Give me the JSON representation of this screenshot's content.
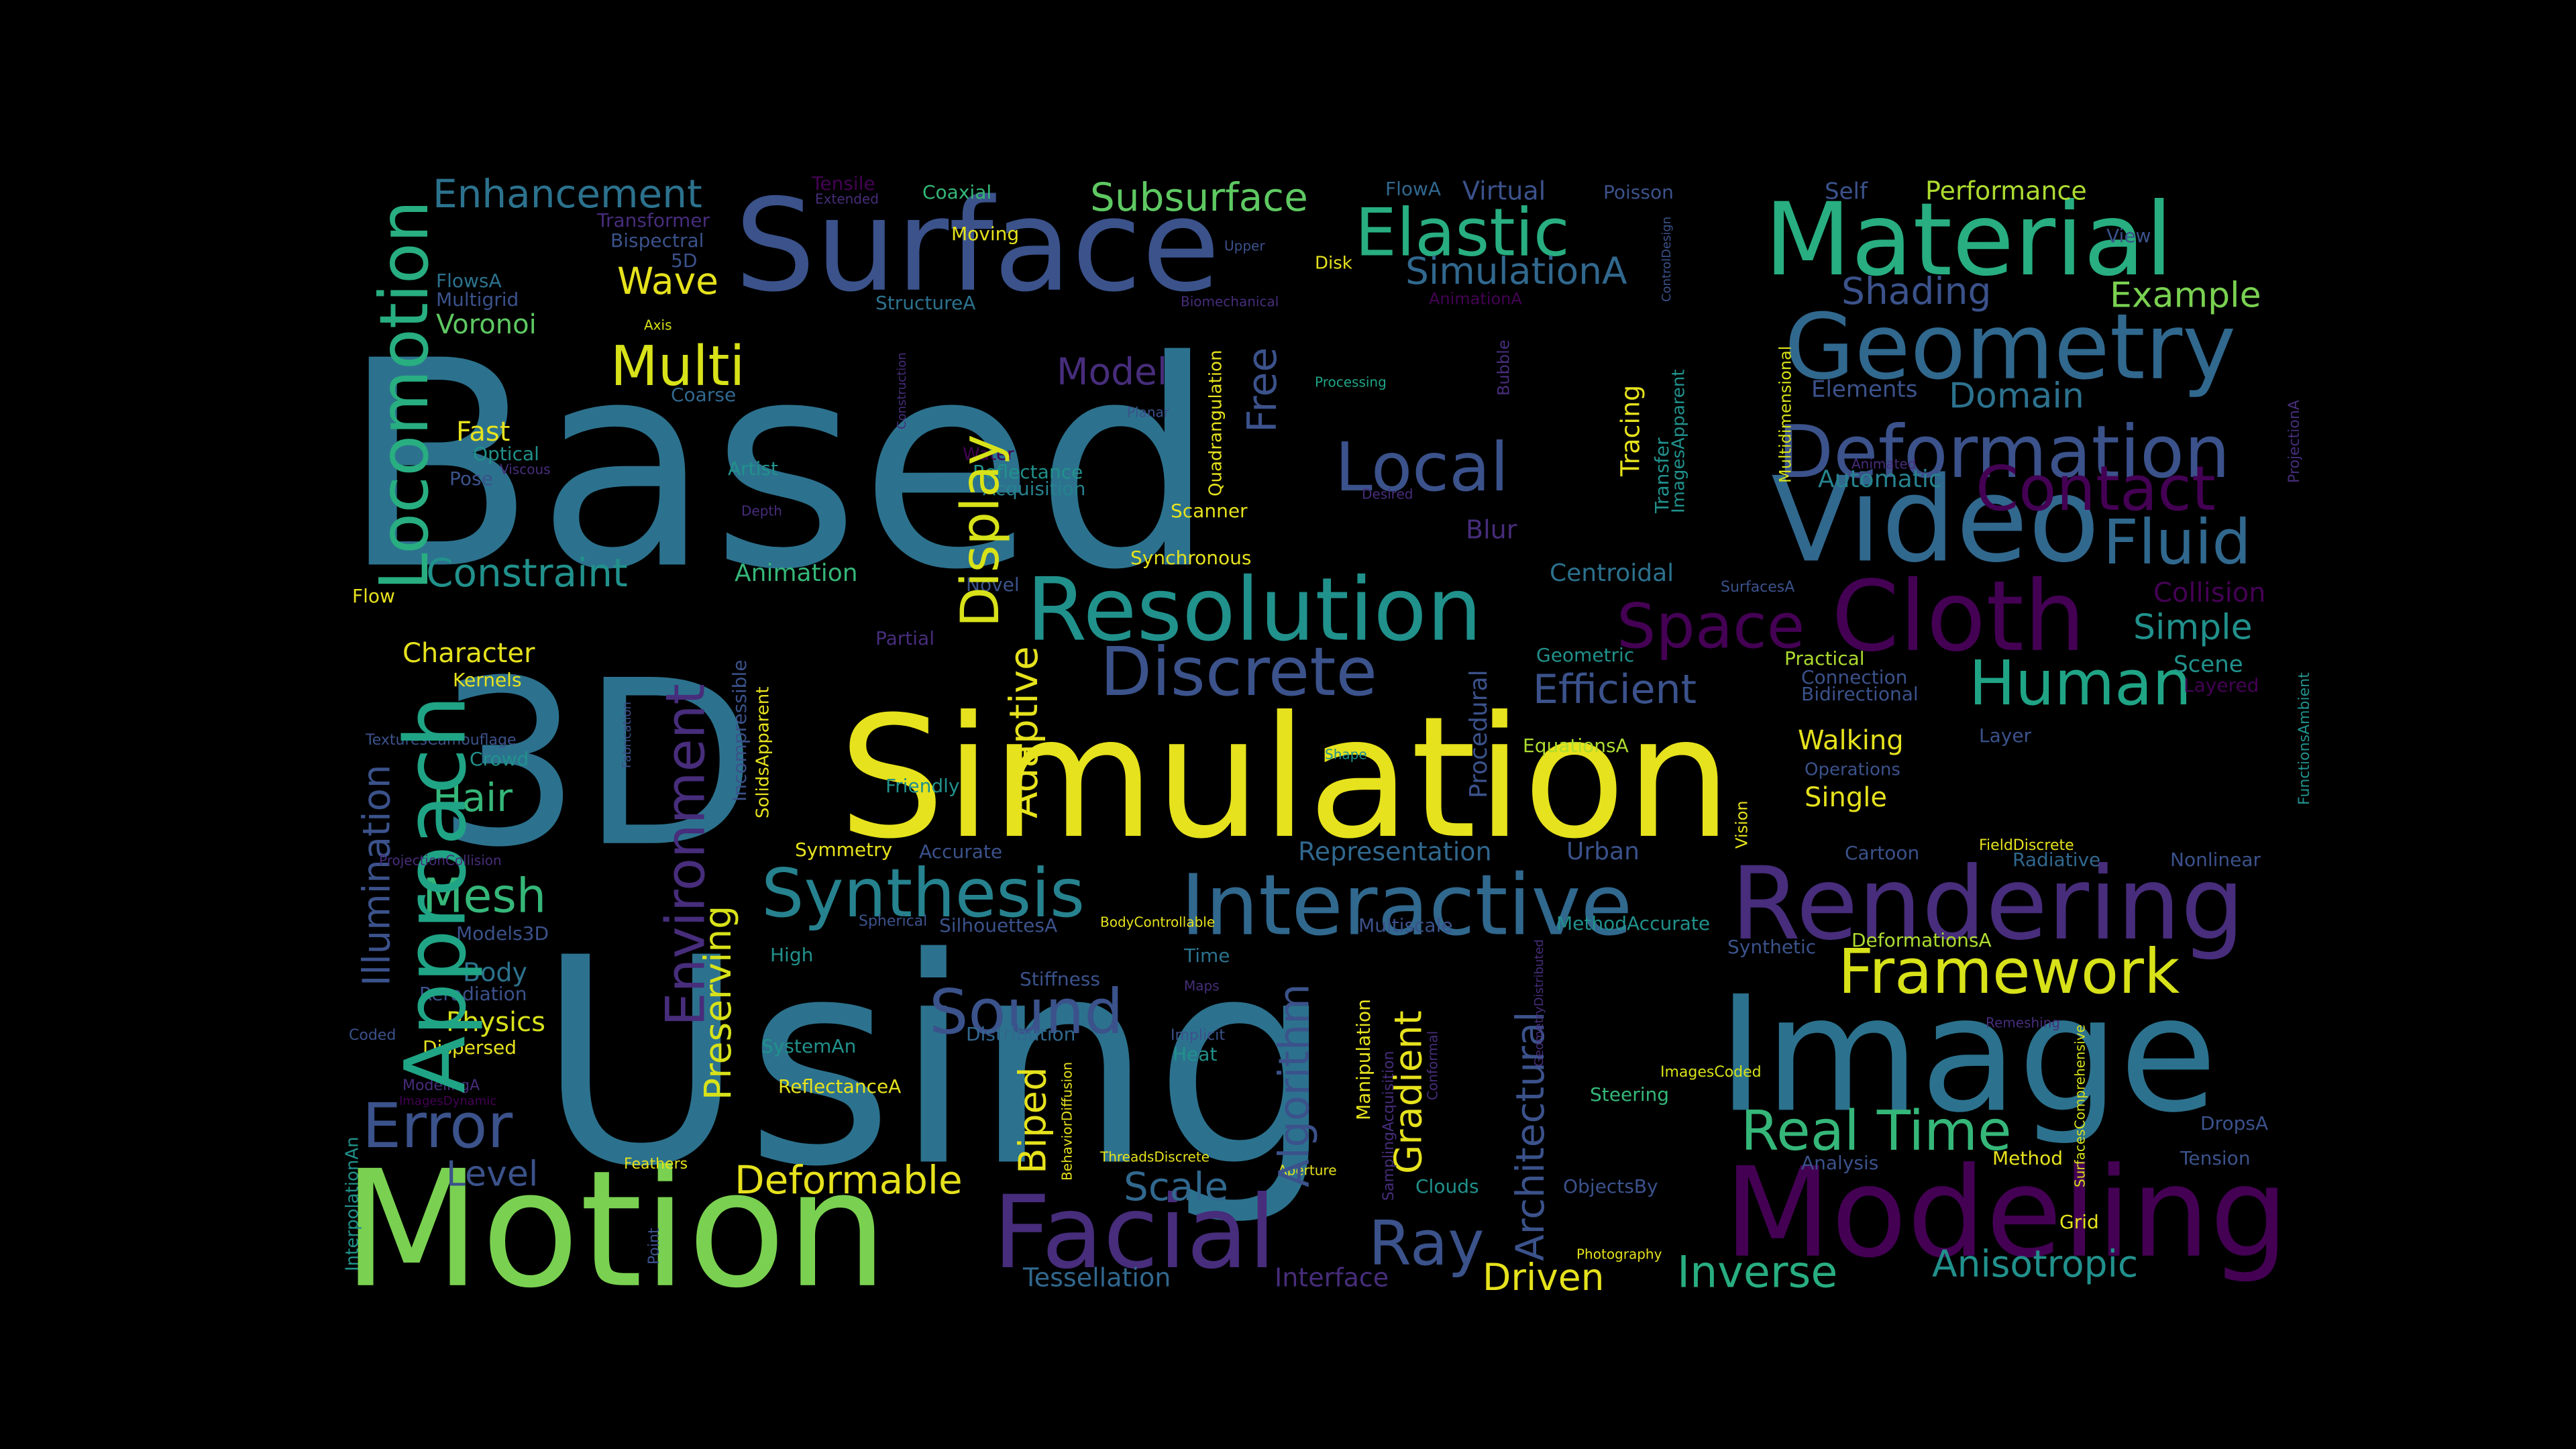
{
  "palette": {
    "background": "#000000",
    "c1": "#440154",
    "c2": "#472d7b",
    "c3": "#3b528b",
    "c4": "#2c728e",
    "c5": "#21918c",
    "c6": "#28ae80",
    "c7": "#5ec962",
    "c8": "#addc30",
    "c9": "#e6e21d"
  },
  "words": [
    {
      "text": "Based",
      "color": "#2c728e"
    },
    {
      "text": "Using",
      "color": "#2c728e"
    },
    {
      "text": "Simulation",
      "color": "#e6e21d"
    },
    {
      "text": "3D",
      "color": "#2c728e"
    },
    {
      "text": "Motion",
      "color": "#7ad151"
    },
    {
      "text": "Image",
      "color": "#2c728e"
    },
    {
      "text": "Modeling",
      "color": "#440154"
    },
    {
      "text": "Rendering",
      "color": "#472d7b"
    },
    {
      "text": "Surface",
      "color": "#3b528b"
    },
    {
      "text": "Material",
      "color": "#28ae80"
    },
    {
      "text": "Video",
      "color": "#31688e"
    },
    {
      "text": "Geometry",
      "color": "#31688e"
    },
    {
      "text": "Interactive",
      "color": "#31688e"
    },
    {
      "text": "Resolution",
      "color": "#21918c"
    },
    {
      "text": "Cloth",
      "color": "#440154"
    },
    {
      "text": "Facial",
      "color": "#472d7b"
    },
    {
      "text": "Deformation",
      "color": "#3b528b"
    },
    {
      "text": "Elastic",
      "color": "#28ae80"
    },
    {
      "text": "Discrete",
      "color": "#3b528b"
    },
    {
      "text": "Framework",
      "color": "#d8e219"
    },
    {
      "text": "Synthesis",
      "color": "#26828e"
    },
    {
      "text": "Contact",
      "color": "#440154"
    },
    {
      "text": "Fluid",
      "color": "#31688e"
    },
    {
      "text": "Local",
      "color": "#3b528b"
    },
    {
      "text": "Real Time",
      "color": "#35b779"
    },
    {
      "text": "Space",
      "color": "#440154"
    },
    {
      "text": "Human",
      "color": "#20a486"
    },
    {
      "text": "Sound",
      "color": "#3b528b"
    },
    {
      "text": "Error",
      "color": "#3b528b"
    },
    {
      "text": "Ray",
      "color": "#3b528b"
    },
    {
      "text": "Multi",
      "color": "#d8e219"
    },
    {
      "text": "Subsurface",
      "color": "#5ec962"
    },
    {
      "text": "Mesh",
      "color": "#35b779"
    },
    {
      "text": "Inverse",
      "color": "#28ae80"
    },
    {
      "text": "Deformable",
      "color": "#e6e21d"
    },
    {
      "text": "Efficient",
      "color": "#3b528b"
    },
    {
      "text": "Anisotropic",
      "color": "#21918c"
    },
    {
      "text": "Constraint",
      "color": "#21918c"
    },
    {
      "text": "Enhancement",
      "color": "#2c728e"
    },
    {
      "text": "Driven",
      "color": "#e6e21d"
    },
    {
      "text": "Simple",
      "color": "#21918c"
    },
    {
      "text": "SimulationA",
      "color": "#31688e"
    },
    {
      "text": "Wave",
      "color": "#e6e21d"
    },
    {
      "text": "Scale",
      "color": "#31688e"
    },
    {
      "text": "Hair",
      "color": "#35b779"
    },
    {
      "text": "Model",
      "color": "#472d7b"
    },
    {
      "text": "Shading",
      "color": "#3b528b"
    },
    {
      "text": "Example",
      "color": "#7ad151"
    },
    {
      "text": "Domain",
      "color": "#2c728e"
    },
    {
      "text": "Level",
      "color": "#3b528b"
    },
    {
      "text": "Tessellation",
      "color": "#31688e"
    },
    {
      "text": "Physics",
      "color": "#d8e219"
    },
    {
      "text": "Body",
      "color": "#2c728e"
    },
    {
      "text": "Voronoi",
      "color": "#5ec962"
    },
    {
      "text": "Performance",
      "color": "#addc30"
    },
    {
      "text": "Character",
      "color": "#e6e21d"
    },
    {
      "text": "Interface",
      "color": "#472d7b"
    },
    {
      "text": "Collision",
      "color": "#440154"
    },
    {
      "text": "Walking",
      "color": "#e6e21d"
    },
    {
      "text": "Single",
      "color": "#e6e21d"
    },
    {
      "text": "Automatic",
      "color": "#26828e"
    },
    {
      "text": "Animation",
      "color": "#35b779"
    },
    {
      "text": "Centroidal",
      "color": "#2c728e"
    },
    {
      "text": "Fast",
      "color": "#e6e21d"
    },
    {
      "text": "Blur",
      "color": "#472d7b"
    },
    {
      "text": "Virtual",
      "color": "#3b528b"
    },
    {
      "text": "Elements",
      "color": "#3b528b"
    },
    {
      "text": "Scene",
      "color": "#21918c"
    },
    {
      "text": "Representation",
      "color": "#31688e"
    },
    {
      "text": "Urban",
      "color": "#3b528b"
    },
    {
      "text": "Synthetic",
      "color": "#3b528b"
    },
    {
      "text": "Cartoon",
      "color": "#3b528b"
    },
    {
      "text": "Nonlinear",
      "color": "#3b528b"
    },
    {
      "text": "DeformationsA",
      "color": "#addc30"
    },
    {
      "text": "Radiative",
      "color": "#31688e"
    },
    {
      "text": "Practical",
      "color": "#addc30"
    },
    {
      "text": "Connection",
      "color": "#3b528b"
    },
    {
      "text": "Bidirectional",
      "color": "#3b528b"
    },
    {
      "text": "Layered",
      "color": "#440154"
    },
    {
      "text": "Layer",
      "color": "#3b528b"
    },
    {
      "text": "Operations",
      "color": "#3b528b"
    },
    {
      "text": "Geometric",
      "color": "#21918c"
    },
    {
      "text": "EquationsA",
      "color": "#addc30"
    },
    {
      "text": "Self",
      "color": "#3b528b"
    },
    {
      "text": "Poisson",
      "color": "#3b528b"
    },
    {
      "text": "FlowA",
      "color": "#31688e"
    },
    {
      "text": "Coaxial",
      "color": "#35b779"
    },
    {
      "text": "Tensile",
      "color": "#440154"
    },
    {
      "text": "Extended",
      "color": "#472d7b"
    },
    {
      "text": "Transformer",
      "color": "#472d7b"
    },
    {
      "text": "Bispectral",
      "color": "#3b528b"
    },
    {
      "text": "5D",
      "color": "#3b528b"
    },
    {
      "text": "FlowsA",
      "color": "#2c728e"
    },
    {
      "text": "Multigrid",
      "color": "#3b528b"
    },
    {
      "text": "Moving",
      "color": "#e6e21d"
    },
    {
      "text": "Upper",
      "color": "#3b528b"
    },
    {
      "text": "Disk",
      "color": "#e6e21d"
    },
    {
      "text": "AnimationA",
      "color": "#440154"
    },
    {
      "text": "Biomechanical",
      "color": "#472d7b"
    },
    {
      "text": "StructureA",
      "color": "#2c728e"
    },
    {
      "text": "Axis",
      "color": "#d8e219"
    },
    {
      "text": "Coarse",
      "color": "#31688e"
    },
    {
      "text": "Optical",
      "color": "#21918c"
    },
    {
      "text": "Pose",
      "color": "#3b528b"
    },
    {
      "text": "Viscous",
      "color": "#472d7b"
    },
    {
      "text": "Artist",
      "color": "#21918c"
    },
    {
      "text": "Depth",
      "color": "#472d7b"
    },
    {
      "text": "Water",
      "color": "#440154"
    },
    {
      "text": "Reflectance",
      "color": "#21918c"
    },
    {
      "text": "Acquisition",
      "color": "#26828e"
    },
    {
      "text": "Scanner",
      "color": "#e6e21d"
    },
    {
      "text": "Synchronous",
      "color": "#e6e21d"
    },
    {
      "text": "Planar",
      "color": "#3b528b"
    },
    {
      "text": "Processing",
      "color": "#20a486"
    },
    {
      "text": "Desired",
      "color": "#472d7b"
    },
    {
      "text": "Animated",
      "color": "#472d7b"
    },
    {
      "text": "View",
      "color": "#3b528b"
    },
    {
      "text": "Flow",
      "color": "#e6e21d"
    },
    {
      "text": "Kernels",
      "color": "#e6e21d"
    },
    {
      "text": "TexturesCamouflage",
      "color": "#3b528b"
    },
    {
      "text": "Crowd",
      "color": "#21918c"
    },
    {
      "text": "Novel",
      "color": "#3b528b"
    },
    {
      "text": "Partial",
      "color": "#472d7b"
    },
    {
      "text": "Friendly",
      "color": "#21918c"
    },
    {
      "text": "Symmetry",
      "color": "#e6e21d"
    },
    {
      "text": "Accurate",
      "color": "#3b528b"
    },
    {
      "text": "Spherical",
      "color": "#3b528b"
    },
    {
      "text": "SilhouettesA",
      "color": "#3b528b"
    },
    {
      "text": "BodyControllable",
      "color": "#e6e21d"
    },
    {
      "text": "Shape",
      "color": "#21918c"
    },
    {
      "text": "Multiscale",
      "color": "#3b528b"
    },
    {
      "text": "MethodAccurate",
      "color": "#21918c"
    },
    {
      "text": "Models3D",
      "color": "#3b528b"
    },
    {
      "text": "High",
      "color": "#21918c"
    },
    {
      "text": "Time",
      "color": "#2c728e"
    },
    {
      "text": "Reradiation",
      "color": "#3b528b"
    },
    {
      "text": "Stiffness",
      "color": "#3b528b"
    },
    {
      "text": "Maps",
      "color": "#472d7b"
    },
    {
      "text": "Distribution",
      "color": "#31688e"
    },
    {
      "text": "Coded",
      "color": "#3b528b"
    },
    {
      "text": "Dispersed",
      "color": "#e6e21d"
    },
    {
      "text": "SystemAn",
      "color": "#21918c"
    },
    {
      "text": "Implicit",
      "color": "#3b528b"
    },
    {
      "text": "Heat",
      "color": "#21918c"
    },
    {
      "text": "ImagesCoded",
      "color": "#d8e219"
    },
    {
      "text": "Steering",
      "color": "#35b779"
    },
    {
      "text": "ModelingA",
      "color": "#472d7b"
    },
    {
      "text": "ImagesDynamic",
      "color": "#440154"
    },
    {
      "text": "ReflectanceA",
      "color": "#e6e21d"
    },
    {
      "text": "ThreadsDiscrete",
      "color": "#e6e21d"
    },
    {
      "text": "Aperture",
      "color": "#e6e21d"
    },
    {
      "text": "Clouds",
      "color": "#21918c"
    },
    {
      "text": "ObjectsBy",
      "color": "#3b528b"
    },
    {
      "text": "Feathers",
      "color": "#e6e21d"
    },
    {
      "text": "Photography",
      "color": "#e6e21d"
    },
    {
      "text": "Analysis",
      "color": "#3b528b"
    },
    {
      "text": "Method",
      "color": "#e6e21d"
    },
    {
      "text": "Grid",
      "color": "#e6e21d"
    },
    {
      "text": "Tension",
      "color": "#3b528b"
    },
    {
      "text": "DropsA",
      "color": "#3b528b"
    },
    {
      "text": "Remeshing",
      "color": "#472d7b"
    },
    {
      "text": "FieldDiscrete",
      "color": "#e6e21d"
    },
    {
      "text": "SurfacesA",
      "color": "#3b528b"
    },
    {
      "text": "Locomotion",
      "color": "#28ae80"
    },
    {
      "text": "Approach",
      "color": "#20a486"
    },
    {
      "text": "Environment",
      "color": "#472d7b"
    },
    {
      "text": "Illumination",
      "color": "#3b528b"
    },
    {
      "text": "Preserving",
      "color": "#d8e219"
    },
    {
      "text": "Display",
      "color": "#d8e219"
    },
    {
      "text": "Adaptive",
      "color": "#e6e21d"
    },
    {
      "text": "Free",
      "color": "#3b528b"
    },
    {
      "text": "Algorithm",
      "color": "#3b528b"
    },
    {
      "text": "Gradient",
      "color": "#e6e21d"
    },
    {
      "text": "Biped",
      "color": "#e6e21d"
    },
    {
      "text": "Architectural",
      "color": "#3b528b"
    },
    {
      "text": "Procedural",
      "color": "#3b528b"
    },
    {
      "text": "Tracing",
      "color": "#e6e21d"
    },
    {
      "text": "Incompressible",
      "color": "#3b528b"
    },
    {
      "text": "SolidsApparent",
      "color": "#e6e21d"
    },
    {
      "text": "Fabrication",
      "color": "#3b528b"
    },
    {
      "text": "Quadrangulation",
      "color": "#e6e21d"
    },
    {
      "text": "Construction",
      "color": "#472d7b"
    },
    {
      "text": "Transfer",
      "color": "#21918c"
    },
    {
      "text": "ImagesApparent",
      "color": "#21918c"
    },
    {
      "text": "Multidimensional",
      "color": "#d8e219"
    },
    {
      "text": "Manipulation",
      "color": "#e6e21d"
    },
    {
      "text": "SamplingAcquisition",
      "color": "#472d7b"
    },
    {
      "text": "Conformal",
      "color": "#472d7b"
    },
    {
      "text": "GeometryDistributed",
      "color": "#472d7b"
    },
    {
      "text": "ControlDesign",
      "color": "#3b528b"
    },
    {
      "text": "Bubble",
      "color": "#472d7b"
    },
    {
      "text": "BehaviorDiffusion",
      "color": "#e6e21d"
    },
    {
      "text": "Vision",
      "color": "#e6e21d"
    },
    {
      "text": "InterpolationAn",
      "color": "#21918c"
    },
    {
      "text": "Point",
      "color": "#3b528b"
    },
    {
      "text": "ProjectionCollision",
      "color": "#472d7b"
    },
    {
      "text": "ProjectionA",
      "color": "#472d7b"
    },
    {
      "text": "FunctionsAmbient",
      "color": "#21918c"
    },
    {
      "text": "SurfacesComprehensive",
      "color": "#d8e219"
    }
  ]
}
